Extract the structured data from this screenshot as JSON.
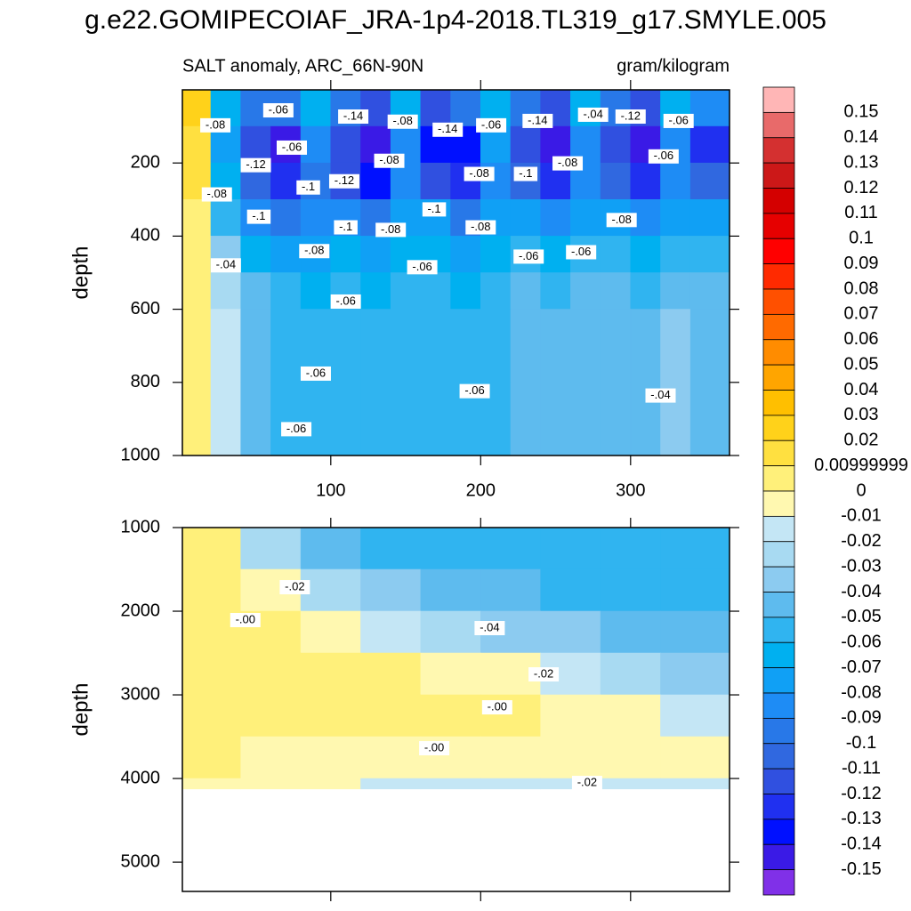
{
  "chart_data": {
    "type": "contour",
    "title": "g.e22.GOMIPECOIAF_JRA-1p4-2018.TL319_g17.SMYLE.005",
    "subtitle_left": "SALT anomaly, ARC_66N-90N",
    "subtitle_right": "gram/kilogram",
    "xlim": [
      1,
      366
    ],
    "xticks": [
      100,
      200,
      300
    ],
    "colorbar": {
      "levels": [
        0.15,
        0.14,
        0.13,
        0.12,
        0.11,
        0.1,
        0.09,
        0.08,
        0.07,
        0.06,
        0.05,
        0.04,
        0.03,
        0.02,
        0.00999999,
        0,
        -0.01,
        -0.02,
        -0.03,
        -0.04,
        -0.05,
        -0.06,
        -0.07,
        -0.08,
        -0.09,
        -0.1,
        -0.11,
        -0.12,
        -0.13,
        -0.14,
        -0.15
      ],
      "colors": [
        "#ffb6b6",
        "#e86a6a",
        "#d43030",
        "#cc1818",
        "#d40000",
        "#e60000",
        "#ff0000",
        "#ff2a00",
        "#ff5000",
        "#ff6a00",
        "#ff8c00",
        "#ffa500",
        "#ffbf00",
        "#ffd21a",
        "#ffe040",
        "#fff07a",
        "#fff8b0",
        "#c4e6f5",
        "#a8daf2",
        "#8ccbf0",
        "#5ebbee",
        "#30b4f0",
        "#00b0f0",
        "#10a0f5",
        "#1e8cf5",
        "#2878e8",
        "#3068e0",
        "#3050e0",
        "#2030f0",
        "#0010ff",
        "#3a1ae6",
        "#8030e8"
      ]
    },
    "panels": [
      {
        "ylabel": "depth",
        "ylim": [
          0,
          1000
        ],
        "yticks": [
          200,
          400,
          600,
          800,
          1000
        ],
        "x_edges": [
          1,
          20,
          40,
          60,
          80,
          100,
          120,
          140,
          160,
          180,
          200,
          220,
          240,
          260,
          280,
          300,
          320,
          340,
          366
        ],
        "depth_edges": [
          0,
          100,
          200,
          300,
          400,
          500,
          600,
          800,
          1000
        ],
        "values": [
          [
            0.02,
            -0.07,
            -0.1,
            -0.1,
            -0.07,
            -0.1,
            -0.12,
            -0.07,
            -0.12,
            -0.1,
            -0.07,
            -0.1,
            -0.12,
            -0.07,
            -0.1,
            -0.12,
            -0.07,
            -0.09
          ],
          [
            0.01,
            -0.08,
            -0.12,
            -0.15,
            -0.09,
            -0.12,
            -0.15,
            -0.09,
            -0.14,
            -0.14,
            -0.08,
            -0.12,
            -0.15,
            -0.09,
            -0.12,
            -0.15,
            -0.09,
            -0.13
          ],
          [
            0.01,
            -0.07,
            -0.11,
            -0.13,
            -0.1,
            -0.12,
            -0.14,
            -0.09,
            -0.12,
            -0.13,
            -0.09,
            -0.11,
            -0.13,
            -0.09,
            -0.11,
            -0.13,
            -0.09,
            -0.11
          ],
          [
            0,
            -0.06,
            -0.09,
            -0.1,
            -0.09,
            -0.09,
            -0.1,
            -0.08,
            -0.08,
            -0.1,
            -0.08,
            -0.08,
            -0.09,
            -0.08,
            -0.08,
            -0.09,
            -0.08,
            -0.08
          ],
          [
            0,
            -0.04,
            -0.07,
            -0.08,
            -0.08,
            -0.07,
            -0.08,
            -0.07,
            -0.07,
            -0.08,
            -0.07,
            -0.06,
            -0.07,
            -0.06,
            -0.06,
            -0.07,
            -0.06,
            -0.06
          ],
          [
            0,
            -0.03,
            -0.05,
            -0.06,
            -0.07,
            -0.06,
            -0.07,
            -0.06,
            -0.06,
            -0.07,
            -0.06,
            -0.05,
            -0.06,
            -0.05,
            -0.05,
            -0.06,
            -0.05,
            -0.05
          ],
          [
            0,
            -0.02,
            -0.05,
            -0.06,
            -0.06,
            -0.06,
            -0.06,
            -0.06,
            -0.06,
            -0.06,
            -0.06,
            -0.05,
            -0.05,
            -0.05,
            -0.05,
            -0.05,
            -0.04,
            -0.05
          ],
          [
            0,
            -0.02,
            -0.05,
            -0.06,
            -0.06,
            -0.06,
            -0.06,
            -0.06,
            -0.06,
            -0.06,
            -0.06,
            -0.05,
            -0.05,
            -0.05,
            -0.05,
            -0.05,
            -0.04,
            -0.05
          ]
        ],
        "labels": [
          {
            "text": "-.06",
            "x": 65,
            "y": 56
          },
          {
            "text": "-.08",
            "x": 23,
            "y": 97
          },
          {
            "text": "-.14",
            "x": 115,
            "y": 73
          },
          {
            "text": "-.08",
            "x": 148,
            "y": 87
          },
          {
            "text": "-.14",
            "x": 178,
            "y": 109
          },
          {
            "text": "-.06",
            "x": 207,
            "y": 97
          },
          {
            "text": "-.14",
            "x": 238,
            "y": 85
          },
          {
            "text": "-.04",
            "x": 275,
            "y": 68
          },
          {
            "text": "-.12",
            "x": 300,
            "y": 73
          },
          {
            "text": "-.06",
            "x": 332,
            "y": 85
          },
          {
            "text": "-.06",
            "x": 74,
            "y": 158
          },
          {
            "text": "-.12",
            "x": 50,
            "y": 206
          },
          {
            "text": "-.08",
            "x": 139,
            "y": 194
          },
          {
            "text": "-.06",
            "x": 322,
            "y": 182
          },
          {
            "text": "-.08",
            "x": 258,
            "y": 201
          },
          {
            "text": "-.12",
            "x": 109,
            "y": 250
          },
          {
            "text": "-.1",
            "x": 85,
            "y": 267
          },
          {
            "text": "-.08",
            "x": 199,
            "y": 230
          },
          {
            "text": "-.1",
            "x": 230,
            "y": 230
          },
          {
            "text": "-.08",
            "x": 24,
            "y": 286
          },
          {
            "text": "-.1",
            "x": 52,
            "y": 347
          },
          {
            "text": "-.1",
            "x": 110,
            "y": 376
          },
          {
            "text": "-.1",
            "x": 169,
            "y": 327
          },
          {
            "text": "-.08",
            "x": 140,
            "y": 383
          },
          {
            "text": "-.08",
            "x": 200,
            "y": 376
          },
          {
            "text": "-.08",
            "x": 294,
            "y": 356
          },
          {
            "text": "-.08",
            "x": 89,
            "y": 441
          },
          {
            "text": "-.06",
            "x": 232,
            "y": 456
          },
          {
            "text": "-.06",
            "x": 267,
            "y": 444
          },
          {
            "text": "-.04",
            "x": 30,
            "y": 480
          },
          {
            "text": "-.06",
            "x": 161,
            "y": 485
          },
          {
            "text": "-.06",
            "x": 110,
            "y": 579
          },
          {
            "text": "-.06",
            "x": 90,
            "y": 776
          },
          {
            "text": "-.06",
            "x": 196,
            "y": 824
          },
          {
            "text": "-.04",
            "x": 320,
            "y": 836
          },
          {
            "text": "-.06",
            "x": 77,
            "y": 928
          }
        ]
      },
      {
        "ylabel": "depth",
        "ylim": [
          1000,
          5350
        ],
        "yticks": [
          1000,
          2000,
          3000,
          4000,
          5000
        ],
        "x_edges": [
          1,
          40,
          80,
          120,
          160,
          200,
          240,
          280,
          320,
          366
        ],
        "depth_edges": [
          1000,
          1500,
          2000,
          2500,
          3000,
          3500,
          4000,
          4125
        ],
        "values": [
          [
            0.005,
            -0.03,
            -0.05,
            -0.06,
            -0.06,
            -0.06,
            -0.06,
            -0.06,
            -0.06
          ],
          [
            0.005,
            -0.01,
            -0.03,
            -0.04,
            -0.05,
            -0.05,
            -0.06,
            -0.06,
            -0.06
          ],
          [
            0.005,
            0.005,
            -0.005,
            -0.02,
            -0.03,
            -0.04,
            -0.04,
            -0.05,
            -0.05
          ],
          [
            0.005,
            0.005,
            0.005,
            0.005,
            -0.005,
            -0.01,
            -0.02,
            -0.03,
            -0.04
          ],
          [
            0.005,
            0.005,
            0.005,
            0.005,
            0.005,
            0.005,
            -0.005,
            -0.01,
            -0.02
          ],
          [
            0.005,
            -0.005,
            -0.005,
            -0.005,
            -0.005,
            -0.005,
            -0.005,
            -0.005,
            -0.01
          ],
          [
            -0.005,
            -0.01,
            -0.01,
            -0.015,
            -0.015,
            -0.015,
            -0.015,
            -0.015,
            -0.015
          ]
        ],
        "labels": [
          {
            "text": "-.02",
            "x": 76,
            "y": 1713
          },
          {
            "text": "-.00",
            "x": 43,
            "y": 2106
          },
          {
            "text": "-.04",
            "x": 206,
            "y": 2202
          },
          {
            "text": "-.02",
            "x": 242,
            "y": 2755
          },
          {
            "text": "-.00",
            "x": 211,
            "y": 3149
          },
          {
            "text": "-.00",
            "x": 169,
            "y": 3638
          },
          {
            "text": "-.02",
            "x": 271,
            "y": 4053
          }
        ]
      }
    ]
  }
}
